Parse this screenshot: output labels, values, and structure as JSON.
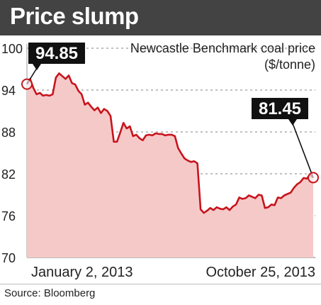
{
  "header": {
    "title": "Price slump"
  },
  "source": "Source: Bloomberg",
  "colors": {
    "header_bg": "#434343",
    "line": "#c8141c",
    "area_fill": "#f6c9c9",
    "label_bg": "#111111",
    "grid": "#9a9a9a"
  },
  "chart_data": {
    "type": "area",
    "title": "Newcastle Benchmark coal price",
    "ylabel": "($/tonne)",
    "xlabel": "",
    "x_tick_labels": [
      "January 2, 2013",
      "October 25, 2013"
    ],
    "yticks": [
      100,
      94,
      88,
      82,
      76,
      70
    ],
    "ylim": [
      70,
      100
    ],
    "grid": "horizontal dashed",
    "annotations": [
      {
        "label": "94.85",
        "point": "start",
        "value": 94.85
      },
      {
        "label": "81.45",
        "point": "end",
        "value": 81.45
      }
    ],
    "series": [
      {
        "values": [
          94.85,
          95.6,
          94.3,
          93.4,
          93.6,
          93.2,
          93.3,
          93.2,
          93.4,
          95.8,
          96.4,
          96.0,
          95.6,
          96.1,
          95.0,
          94.8,
          93.9,
          93.4,
          91.9,
          92.2,
          91.6,
          91.1,
          91.5,
          90.7,
          91.3,
          91.0,
          90.3,
          86.6,
          86.6,
          87.9,
          89.3,
          88.5,
          88.8,
          87.4,
          87.6,
          87.1,
          86.8,
          87.5,
          87.6,
          87.5,
          87.8,
          87.7,
          87.7,
          87.5,
          87.6,
          87.6,
          87.4,
          85.7,
          84.9,
          84.2,
          83.9,
          83.7,
          83.8,
          83.5,
          76.9,
          76.4,
          76.7,
          77.1,
          76.8,
          77.2,
          77.0,
          76.9,
          77.2,
          76.8,
          77.3,
          77.6,
          78.6,
          78.4,
          78.5,
          78.9,
          78.7,
          78.5,
          79.0,
          78.9,
          77.1,
          77.2,
          77.6,
          77.5,
          78.6,
          78.5,
          78.9,
          79.1,
          79.3,
          80.0,
          80.5,
          80.8,
          81.4,
          81.3,
          81.9,
          81.45
        ]
      }
    ]
  }
}
